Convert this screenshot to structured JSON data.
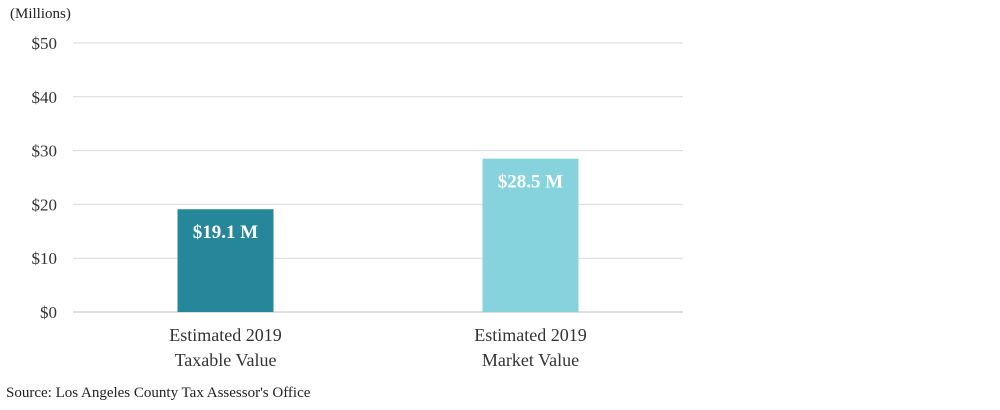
{
  "chart_data": {
    "type": "bar",
    "unit_label": "(Millions)",
    "categories": [
      [
        "Estimated 2019",
        "Taxable Value"
      ],
      [
        "Estimated 2019",
        "Market Value"
      ]
    ],
    "values": [
      19.1,
      28.5
    ],
    "data_labels": [
      "$19.1 M",
      "$28.5 M"
    ],
    "bar_colors": [
      "#27879a",
      "#86d3dd"
    ],
    "ylim": [
      0,
      50
    ],
    "yticks": [
      0,
      10,
      20,
      30,
      40,
      50
    ],
    "ytick_labels": [
      "$0",
      "$10",
      "$20",
      "$30",
      "$40",
      "$50"
    ],
    "grid": true,
    "legend": "none",
    "title": "",
    "xlabel": "",
    "ylabel": ""
  },
  "source": "Source: Los Angeles County Tax Assessor's Office"
}
